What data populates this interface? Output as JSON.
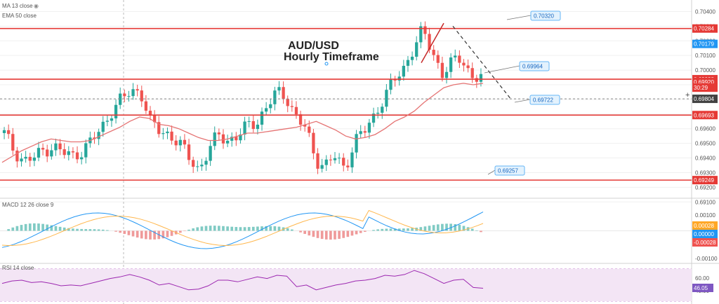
{
  "indicators": {
    "ma_label": "MA 13 close",
    "ema_label": "EMA 50 close",
    "macd_label": "MACD 12 26 close 9",
    "rsi_label": "RSI 14 close"
  },
  "chart_data": [
    {
      "type": "candlestick",
      "title": "AUD/USD",
      "subtitle": "Hourly Timeframe",
      "ylim": [
        0.6913,
        0.7045
      ],
      "y_ticks": [
        "0.70400",
        "0.70300",
        "0.70200",
        "0.70100",
        "0.70000",
        "0.69900",
        "0.69800",
        "0.69700",
        "0.69600",
        "0.69500",
        "0.69400",
        "0.69300",
        "0.69200",
        "0.69100"
      ],
      "horizontal_levels": [
        {
          "value": 0.70284,
          "label": "0.70284",
          "style": "solid",
          "color": "#e53935"
        },
        {
          "value": 0.69938,
          "label": "0.69938",
          "style": "solid",
          "color": "#e53935"
        },
        {
          "value": 0.69693,
          "label": "0.69693",
          "style": "solid",
          "color": "#e53935"
        },
        {
          "value": 0.69249,
          "label": "0.69249",
          "style": "solid",
          "color": "#e53935"
        },
        {
          "value": 0.69804,
          "label": "0.69804",
          "style": "dashed",
          "color": "#888888"
        }
      ],
      "price_badges": [
        {
          "value": 0.70179,
          "label": "0.70179",
          "color": "#2196f3"
        },
        {
          "value": 0.6992,
          "label": "0.69920",
          "color": "#e53935"
        },
        {
          "value": 0.6988,
          "label": "30:29",
          "color": "#e53935"
        },
        {
          "value": 0.69804,
          "label": "0.69804",
          "color": "#424242"
        }
      ],
      "callouts": [
        "0.70320",
        "0.69964",
        "0.69722",
        "0.69257"
      ],
      "ema_series": [
        0.6937,
        0.6941,
        0.6945,
        0.6948,
        0.6951,
        0.6953,
        0.6952,
        0.6951,
        0.6951,
        0.6952,
        0.6955,
        0.6958,
        0.6961,
        0.6965,
        0.6968,
        0.6967,
        0.6963,
        0.6962,
        0.696,
        0.6957,
        0.6954,
        0.6952,
        0.6952,
        0.6953,
        0.6955,
        0.6957,
        0.6957,
        0.6958,
        0.6959,
        0.696,
        0.6961,
        0.6963,
        0.6965,
        0.6962,
        0.6959,
        0.6955,
        0.6953,
        0.6954,
        0.6956,
        0.696,
        0.6965,
        0.6968,
        0.6972,
        0.6978,
        0.6983,
        0.6988,
        0.699,
        0.6991,
        0.699,
        0.6991
      ],
      "close_series": [
        0.6957,
        0.6945,
        0.6938,
        0.694,
        0.6945,
        0.6948,
        0.6944,
        0.6941,
        0.6945,
        0.6952,
        0.696,
        0.6972,
        0.698,
        0.6985,
        0.6986,
        0.6965,
        0.6958,
        0.6956,
        0.695,
        0.694,
        0.6932,
        0.6945,
        0.6956,
        0.6952,
        0.6955,
        0.6962,
        0.6965,
        0.6975,
        0.6985,
        0.6982,
        0.6968,
        0.696,
        0.6939,
        0.6935,
        0.6941,
        0.6932,
        0.6952,
        0.6958,
        0.6968,
        0.6982,
        0.6992,
        0.7,
        0.7015,
        0.7027,
        0.7012,
        0.6998,
        0.7005,
        0.7008,
        0.6996,
        0.6995
      ]
    },
    {
      "type": "macd",
      "y_ticks": [
        "0.00100",
        "0.00000",
        "-0.00100"
      ],
      "badges": [
        {
          "label": "0.00028",
          "color": "#ffa726"
        },
        {
          "label": "0.00000",
          "color": "#2196f3"
        },
        {
          "label": "-0.00028",
          "color": "#ef5350"
        }
      ]
    },
    {
      "type": "rsi",
      "y_ticks": [
        "60.00",
        "40.00"
      ],
      "value_label": "46.05",
      "series": [
        52,
        55,
        56,
        53,
        54,
        52,
        49,
        50,
        49,
        52,
        55,
        58,
        60,
        63,
        60,
        56,
        50,
        52,
        48,
        44,
        45,
        49,
        56,
        56,
        54,
        57,
        60,
        58,
        62,
        61,
        48,
        50,
        44,
        47,
        50,
        52,
        55,
        56,
        58,
        62,
        61,
        63,
        68,
        64,
        58,
        52,
        56,
        57,
        47,
        46
      ]
    }
  ],
  "colors": {
    "up": "#26a69a",
    "down": "#ef5350",
    "level": "#e53935",
    "ema": "#e57373",
    "macd": "#2196f3",
    "signal": "#ffb74d",
    "rsi": "#9c27b0"
  }
}
